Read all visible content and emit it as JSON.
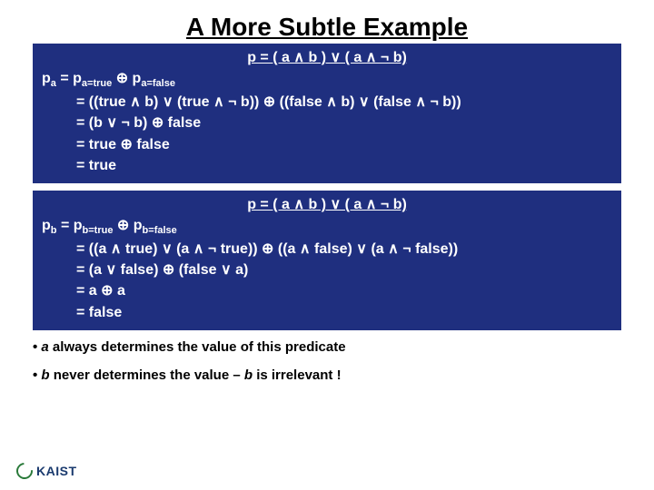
{
  "title": "A More Subtle Example",
  "box1": {
    "header": "p = ( a ∧ b ) ∨ ( a ∧ ¬ b)",
    "line1_pre": "p",
    "line1_sub1": "a",
    "line1_mid": " = p",
    "line1_sub2": "a=true",
    "line1_op": " ⊕  p",
    "line1_sub3": "a=false",
    "line2": "= ((true ∧ b) ∨ (true ∧ ¬ b)) ⊕ ((false ∧ b) ∨ (false ∧ ¬ b))",
    "line3": "= (b ∨ ¬ b) ⊕ false",
    "line4": "= true ⊕ false",
    "line5": "= true"
  },
  "box2": {
    "header": "p = ( a ∧ b ) ∨ ( a ∧ ¬ b)",
    "line1_pre": "p",
    "line1_sub1": "b",
    "line1_mid": " = p",
    "line1_sub2": "b=true",
    "line1_op": " ⊕  p",
    "line1_sub3": "b=false",
    "line2": "= ((a ∧ true) ∨ (a ∧ ¬ true)) ⊕ ((a ∧ false) ∨ (a ∧ ¬ false))",
    "line3": "= (a ∨ false) ⊕ (false ∨ a)",
    "line4": "= a ⊕ a",
    "line5": "= false"
  },
  "bullets": {
    "b1_pre": "• ",
    "b1_var": "a",
    "b1_post": " always determines the value of this predicate",
    "b2_pre": "• ",
    "b2_var1": "b",
    "b2_mid": " never determines the value – ",
    "b2_var2": "b",
    "b2_post": " is irrelevant !"
  },
  "logo": "KAIST",
  "colors": {
    "box_bg": "#1f2f7f",
    "text_white": "#ffffff",
    "text_black": "#000000",
    "logo_color": "#1a3a6e"
  }
}
